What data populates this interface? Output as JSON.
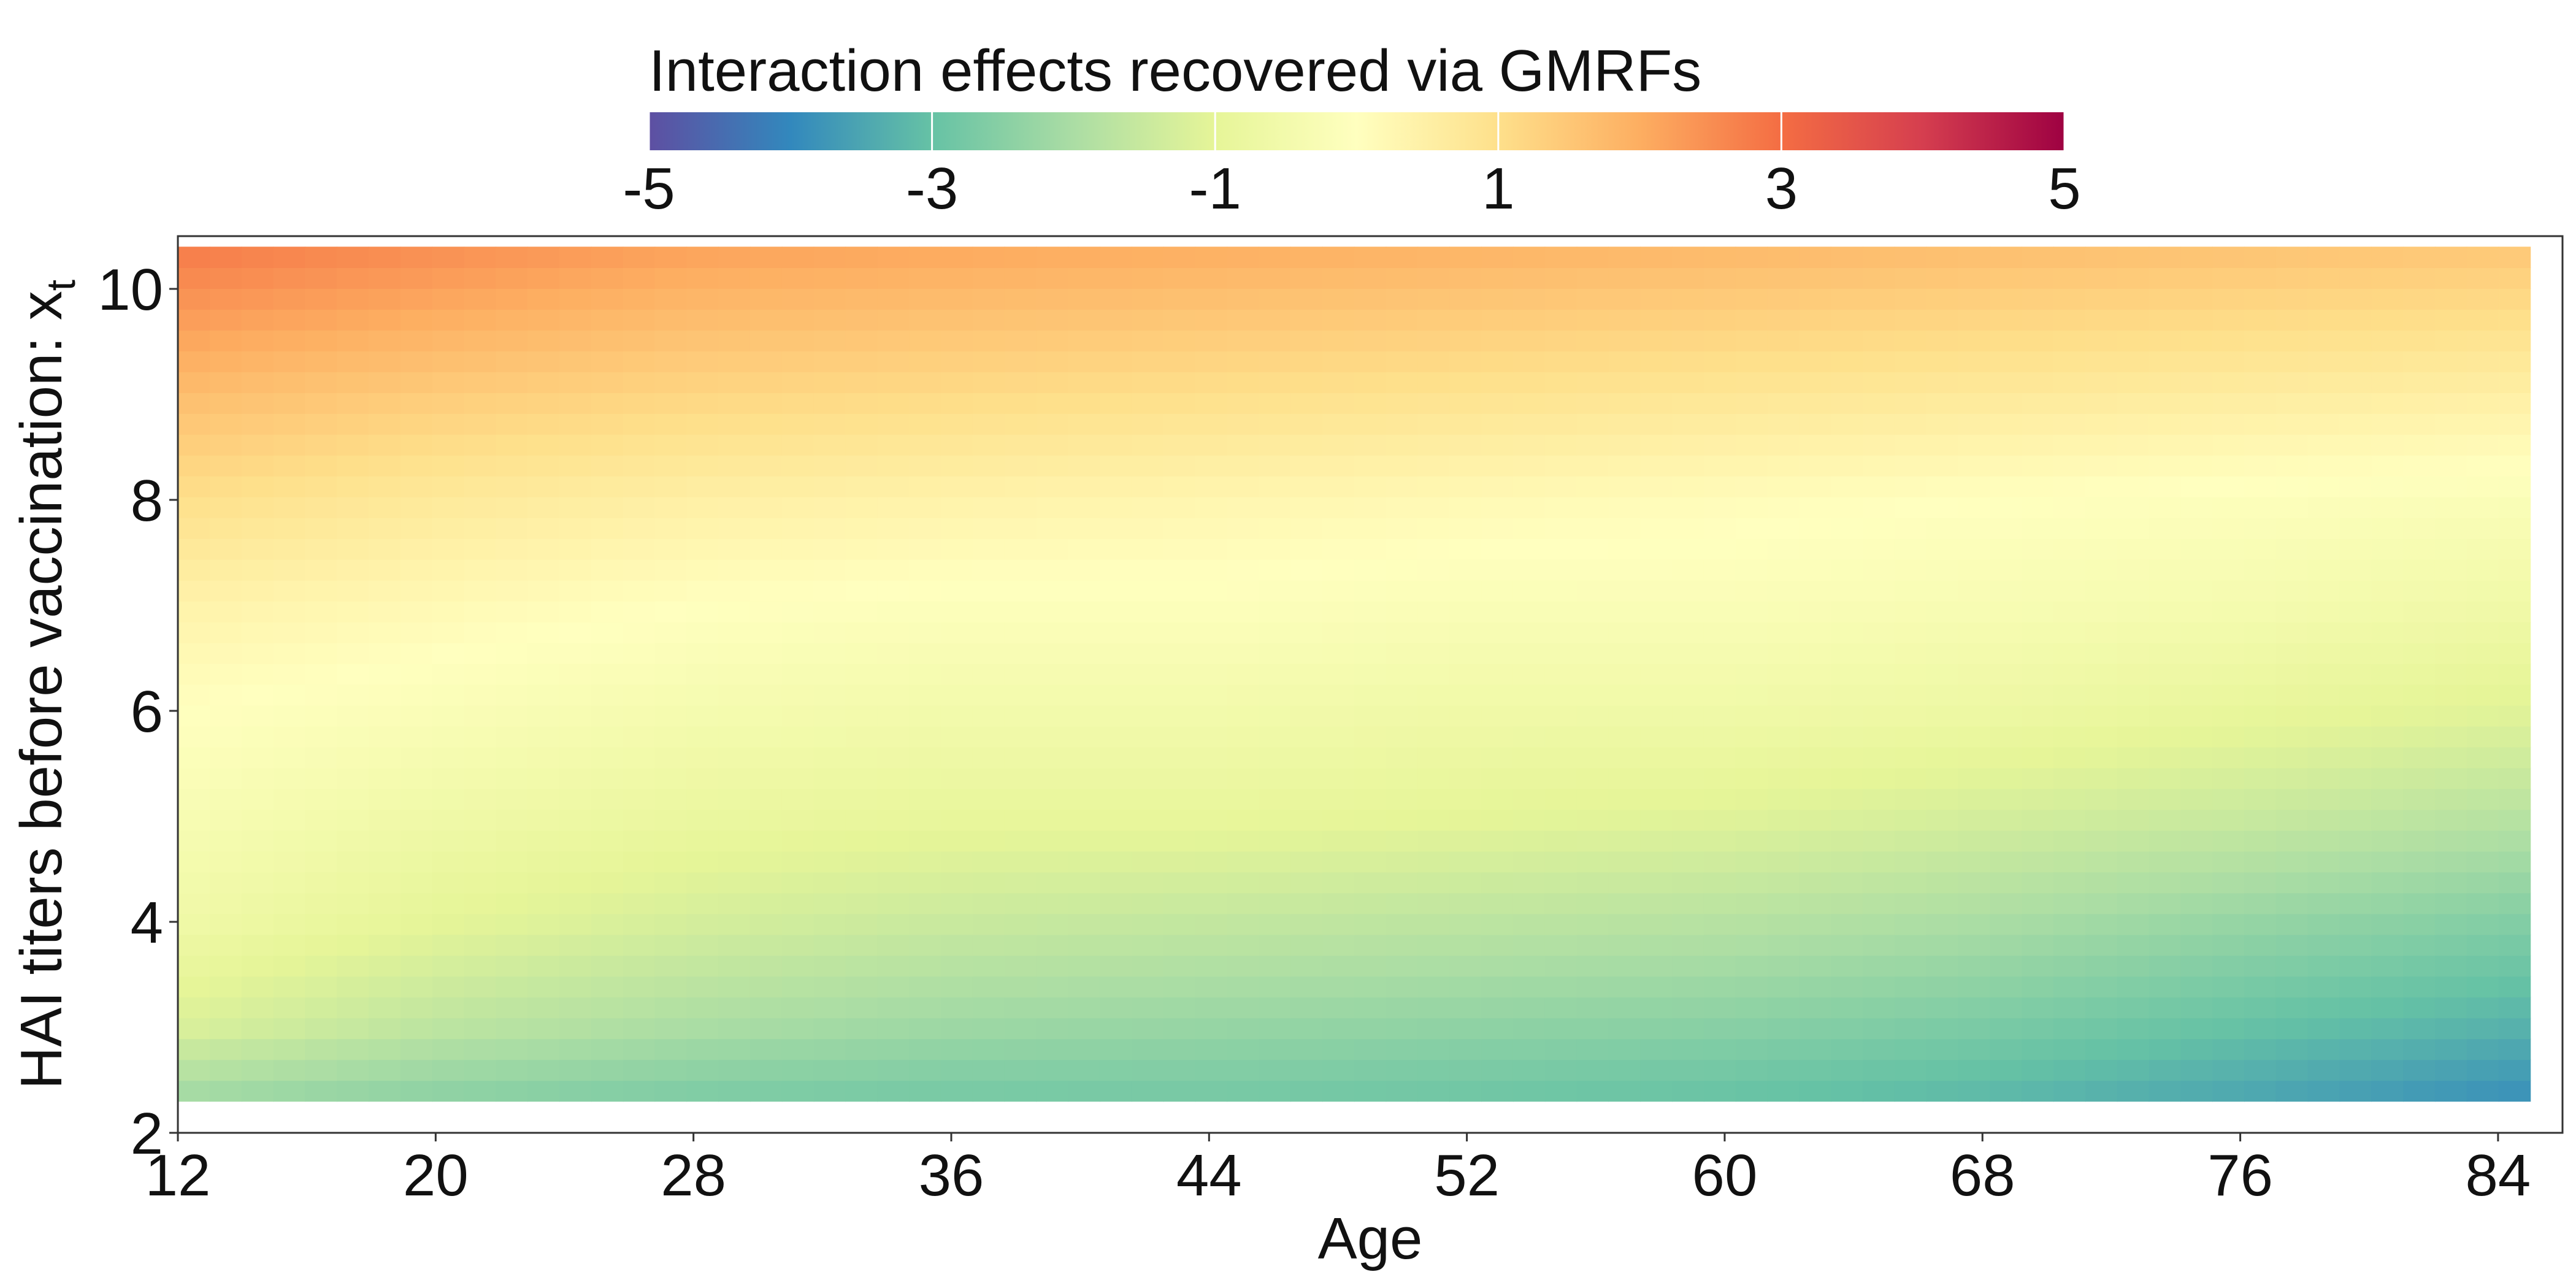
{
  "chart_data": {
    "type": "heatmap",
    "legend": {
      "title": "Interaction effects recovered via GMRFs",
      "placement": "top",
      "range": [
        -5,
        5
      ],
      "ticks": [
        -5,
        -3,
        -1,
        1,
        3,
        5
      ],
      "tick_labels": [
        "-5",
        "-3",
        "-1",
        "1",
        "3",
        "5"
      ],
      "palette": [
        "#5E4FA2",
        "#3288BD",
        "#66C2A5",
        "#ABDDA4",
        "#E6F598",
        "#FFFFBF",
        "#FEE08B",
        "#FDAE61",
        "#F46D43",
        "#D53E4F",
        "#9E0142"
      ]
    },
    "xlabel": "Age",
    "ylabel": "HAI titers before vaccination:  x",
    "ylabel_subscript": "t",
    "xlim": [
      12,
      86
    ],
    "ylim": [
      2,
      10.5
    ],
    "x_ticks": [
      12,
      20,
      28,
      36,
      44,
      52,
      60,
      68,
      76,
      84
    ],
    "x_tick_labels": [
      "12",
      "20",
      "28",
      "36",
      "44",
      "52",
      "60",
      "68",
      "76",
      "84"
    ],
    "y_ticks": [
      2,
      4,
      6,
      8,
      10
    ],
    "y_tick_labels": [
      "2",
      "4",
      "6",
      "8",
      "10"
    ],
    "x": [
      12,
      20,
      28,
      36,
      44,
      52,
      60,
      68,
      76,
      85
    ],
    "y": [
      2.3,
      3,
      4,
      5,
      6,
      7,
      8,
      9,
      10,
      10.4
    ],
    "z": [
      [
        -2.2,
        -2.5,
        -2.7,
        -2.8,
        -2.8,
        -2.9,
        -3.0,
        -3.2,
        -3.5,
        -3.9
      ],
      [
        -1.2,
        -1.7,
        -2.0,
        -2.2,
        -2.3,
        -2.4,
        -2.5,
        -2.7,
        -3.0,
        -3.3
      ],
      [
        -0.6,
        -1.0,
        -1.3,
        -1.5,
        -1.6,
        -1.7,
        -1.8,
        -2.0,
        -2.3,
        -2.6
      ],
      [
        -0.3,
        -0.6,
        -0.8,
        -0.9,
        -0.9,
        -1.0,
        -1.1,
        -1.3,
        -1.5,
        -1.8
      ],
      [
        0.0,
        -0.2,
        -0.4,
        -0.5,
        -0.5,
        -0.6,
        -0.6,
        -0.7,
        -0.9,
        -1.1
      ],
      [
        0.4,
        0.2,
        0.0,
        -0.1,
        -0.1,
        -0.2,
        -0.2,
        -0.3,
        -0.4,
        -0.6
      ],
      [
        1.0,
        0.7,
        0.5,
        0.4,
        0.3,
        0.2,
        0.1,
        0.0,
        -0.1,
        -0.2
      ],
      [
        1.7,
        1.4,
        1.2,
        1.1,
        1.0,
        0.9,
        0.8,
        0.7,
        0.6,
        0.5
      ],
      [
        2.5,
        2.2,
        1.9,
        1.8,
        1.7,
        1.6,
        1.5,
        1.4,
        1.3,
        1.2
      ],
      [
        2.8,
        2.5,
        2.2,
        2.1,
        2.0,
        1.9,
        1.8,
        1.7,
        1.6,
        1.5
      ]
    ]
  }
}
